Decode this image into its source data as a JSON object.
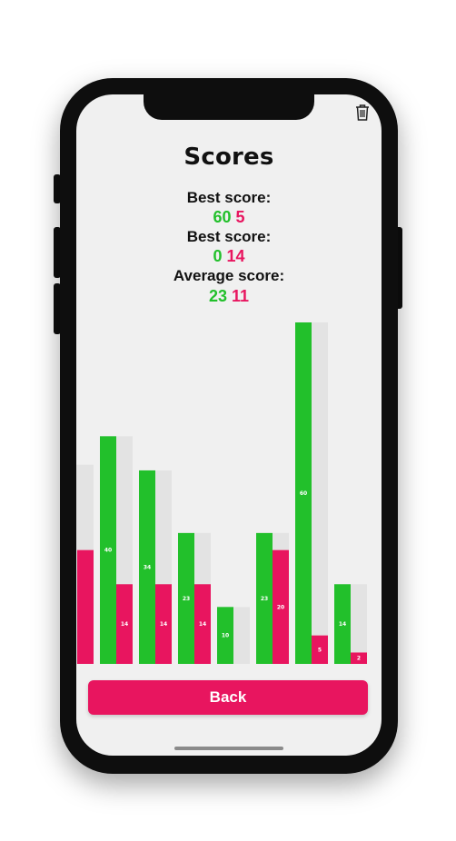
{
  "screen": {
    "title": "Scores"
  },
  "stats": {
    "best1": {
      "label": "Best score:",
      "green": "60",
      "red": "5"
    },
    "best2": {
      "label": "Best score:",
      "green": "0",
      "red": "14"
    },
    "average": {
      "label": "Average score:",
      "green": "23",
      "red": "11"
    }
  },
  "icons": {
    "trash": "trash-icon"
  },
  "actions": {
    "back_label": "Back"
  },
  "colors": {
    "green": "#22c02b",
    "red": "#e8155f",
    "track": "#e3e3e3",
    "background": "#f0f0f0"
  },
  "chart_data": {
    "type": "bar",
    "max": 60,
    "series": [
      {
        "values": [
          null,
          40,
          34,
          23,
          10,
          23,
          60,
          14
        ]
      },
      {
        "values": [
          null,
          14,
          14,
          14,
          0,
          20,
          5,
          2
        ]
      }
    ],
    "partial_first_bar": {
      "track": 35,
      "red": 20
    }
  }
}
